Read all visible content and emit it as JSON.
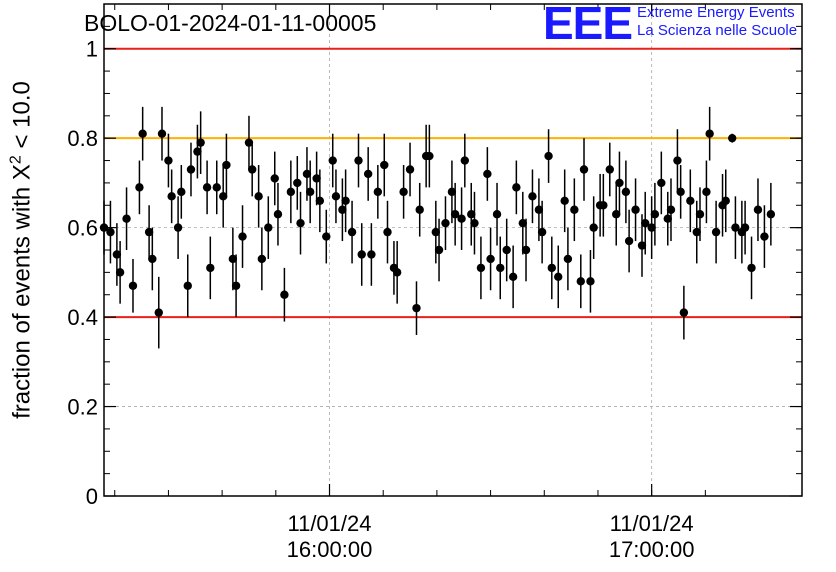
{
  "header": {
    "title": "BOLO-01-2024-01-11-00005",
    "logo": "EEE",
    "logo_line1": "Extreme Energy Events",
    "logo_line2": "La Scienza nelle Scuole"
  },
  "colors": {
    "red_line": "#e8201a",
    "orange_line": "#ffb000",
    "logo_blue": "#1a1aff",
    "points": "#000000"
  },
  "chart_data": {
    "type": "scatter",
    "ylabel_prefix": "fraction of events with ",
    "ylabel_symbol": "X",
    "ylabel_sup": "2",
    "ylabel_suffix": " < 10.0",
    "ylim": [
      0,
      1.1
    ],
    "xlim": [
      "15:18",
      "17:28"
    ],
    "y_ticks": [
      "0",
      "0.2",
      "0.4",
      "0.6",
      "0.8",
      "1"
    ],
    "y_tick_values": [
      0,
      0.2,
      0.4,
      0.6,
      0.8,
      1
    ],
    "x_ticks": [
      {
        "date": "11/01/24",
        "time": "16:00:00",
        "value": "16:00"
      },
      {
        "date": "11/01/24",
        "time": "17:00:00",
        "value": "17:00"
      }
    ],
    "grid": true,
    "reference_lines": [
      {
        "y": 1.0,
        "color": "red"
      },
      {
        "y": 0.8,
        "color": "orange"
      },
      {
        "y": 0.4,
        "color": "red"
      }
    ],
    "points": [
      [
        15.3,
        0.6,
        0.06
      ],
      [
        15.32,
        0.59,
        0.07
      ],
      [
        15.34,
        0.54,
        0.07
      ],
      [
        15.35,
        0.5,
        0.07
      ],
      [
        15.37,
        0.62,
        0.07
      ],
      [
        15.39,
        0.47,
        0.06
      ],
      [
        15.41,
        0.69,
        0.06
      ],
      [
        15.42,
        0.81,
        0.06
      ],
      [
        15.44,
        0.59,
        0.06
      ],
      [
        15.45,
        0.53,
        0.07
      ],
      [
        15.47,
        0.41,
        0.08
      ],
      [
        15.48,
        0.81,
        0.06
      ],
      [
        15.5,
        0.75,
        0.06
      ],
      [
        15.51,
        0.67,
        0.06
      ],
      [
        15.53,
        0.6,
        0.07
      ],
      [
        15.54,
        0.68,
        0.06
      ],
      [
        15.56,
        0.47,
        0.07
      ],
      [
        15.57,
        0.73,
        0.06
      ],
      [
        15.59,
        0.77,
        0.06
      ],
      [
        15.6,
        0.79,
        0.07
      ],
      [
        15.62,
        0.69,
        0.06
      ],
      [
        15.63,
        0.51,
        0.07
      ],
      [
        15.65,
        0.69,
        0.06
      ],
      [
        15.67,
        0.67,
        0.07
      ],
      [
        15.68,
        0.74,
        0.07
      ],
      [
        15.7,
        0.53,
        0.07
      ],
      [
        15.71,
        0.47,
        0.07
      ],
      [
        15.73,
        0.58,
        0.07
      ],
      [
        15.75,
        0.79,
        0.06
      ],
      [
        15.76,
        0.73,
        0.06
      ],
      [
        15.78,
        0.67,
        0.07
      ],
      [
        15.79,
        0.53,
        0.07
      ],
      [
        15.81,
        0.6,
        0.07
      ],
      [
        15.83,
        0.71,
        0.06
      ],
      [
        15.84,
        0.63,
        0.07
      ],
      [
        15.86,
        0.45,
        0.06
      ],
      [
        15.88,
        0.68,
        0.07
      ],
      [
        15.9,
        0.7,
        0.06
      ],
      [
        15.91,
        0.61,
        0.07
      ],
      [
        15.93,
        0.72,
        0.06
      ],
      [
        15.94,
        0.68,
        0.07
      ],
      [
        15.96,
        0.71,
        0.06
      ],
      [
        15.97,
        0.66,
        0.07
      ],
      [
        15.99,
        0.58,
        0.06
      ],
      [
        16.01,
        0.75,
        0.06
      ],
      [
        16.02,
        0.67,
        0.06
      ],
      [
        16.04,
        0.64,
        0.07
      ],
      [
        16.05,
        0.66,
        0.07
      ],
      [
        16.07,
        0.59,
        0.07
      ],
      [
        16.09,
        0.75,
        0.06
      ],
      [
        16.1,
        0.54,
        0.07
      ],
      [
        16.12,
        0.72,
        0.06
      ],
      [
        16.13,
        0.54,
        0.07
      ],
      [
        16.15,
        0.68,
        0.06
      ],
      [
        16.17,
        0.74,
        0.07
      ],
      [
        16.18,
        0.59,
        0.07
      ],
      [
        16.2,
        0.51,
        0.06
      ],
      [
        16.21,
        0.5,
        0.07
      ],
      [
        16.23,
        0.68,
        0.06
      ],
      [
        16.25,
        0.73,
        0.06
      ],
      [
        16.27,
        0.42,
        0.06
      ],
      [
        16.28,
        0.64,
        0.06
      ],
      [
        16.3,
        0.76,
        0.07
      ],
      [
        16.31,
        0.76,
        0.07
      ],
      [
        16.33,
        0.59,
        0.07
      ],
      [
        16.34,
        0.55,
        0.07
      ],
      [
        16.36,
        0.61,
        0.06
      ],
      [
        16.38,
        0.68,
        0.07
      ],
      [
        16.39,
        0.63,
        0.07
      ],
      [
        16.41,
        0.62,
        0.07
      ],
      [
        16.42,
        0.75,
        0.06
      ],
      [
        16.44,
        0.63,
        0.07
      ],
      [
        16.45,
        0.61,
        0.07
      ],
      [
        16.47,
        0.51,
        0.07
      ],
      [
        16.49,
        0.72,
        0.06
      ],
      [
        16.5,
        0.53,
        0.07
      ],
      [
        16.52,
        0.63,
        0.07
      ],
      [
        16.53,
        0.51,
        0.07
      ],
      [
        16.55,
        0.55,
        0.07
      ],
      [
        16.57,
        0.49,
        0.07
      ],
      [
        16.58,
        0.69,
        0.06
      ],
      [
        16.6,
        0.61,
        0.07
      ],
      [
        16.61,
        0.55,
        0.07
      ],
      [
        16.63,
        0.67,
        0.06
      ],
      [
        16.65,
        0.64,
        0.07
      ],
      [
        16.66,
        0.59,
        0.07
      ],
      [
        16.68,
        0.76,
        0.06
      ],
      [
        16.69,
        0.51,
        0.07
      ],
      [
        16.71,
        0.49,
        0.07
      ],
      [
        16.73,
        0.66,
        0.07
      ],
      [
        16.74,
        0.53,
        0.07
      ],
      [
        16.76,
        0.64,
        0.07
      ],
      [
        16.78,
        0.48,
        0.06
      ],
      [
        16.79,
        0.73,
        0.07
      ],
      [
        16.81,
        0.48,
        0.07
      ],
      [
        16.82,
        0.6,
        0.07
      ],
      [
        16.84,
        0.65,
        0.07
      ],
      [
        16.85,
        0.65,
        0.07
      ],
      [
        16.87,
        0.73,
        0.06
      ],
      [
        16.89,
        0.63,
        0.07
      ],
      [
        16.9,
        0.7,
        0.07
      ],
      [
        16.92,
        0.68,
        0.07
      ],
      [
        16.93,
        0.57,
        0.07
      ],
      [
        16.95,
        0.64,
        0.07
      ],
      [
        16.97,
        0.56,
        0.07
      ],
      [
        16.98,
        0.61,
        0.07
      ],
      [
        17.0,
        0.6,
        0.07
      ],
      [
        17.01,
        0.63,
        0.07
      ],
      [
        17.03,
        0.7,
        0.07
      ],
      [
        17.05,
        0.62,
        0.06
      ],
      [
        17.06,
        0.64,
        0.07
      ],
      [
        17.08,
        0.75,
        0.07
      ],
      [
        17.09,
        0.68,
        0.06
      ],
      [
        17.1,
        0.41,
        0.06
      ],
      [
        17.12,
        0.66,
        0.07
      ],
      [
        17.14,
        0.59,
        0.07
      ],
      [
        17.15,
        0.63,
        0.06
      ],
      [
        17.17,
        0.68,
        0.07
      ],
      [
        17.18,
        0.81,
        0.06
      ],
      [
        17.2,
        0.59,
        0.07
      ],
      [
        17.22,
        0.65,
        0.07
      ],
      [
        17.23,
        0.66,
        0.07
      ],
      [
        17.25,
        0.8,
        0.01
      ],
      [
        17.26,
        0.6,
        0.07
      ],
      [
        17.28,
        0.59,
        0.07
      ],
      [
        17.29,
        0.6,
        0.06
      ],
      [
        17.31,
        0.51,
        0.07
      ],
      [
        17.33,
        0.64,
        0.07
      ],
      [
        17.35,
        0.58,
        0.07
      ],
      [
        17.37,
        0.63,
        0.07
      ]
    ]
  }
}
